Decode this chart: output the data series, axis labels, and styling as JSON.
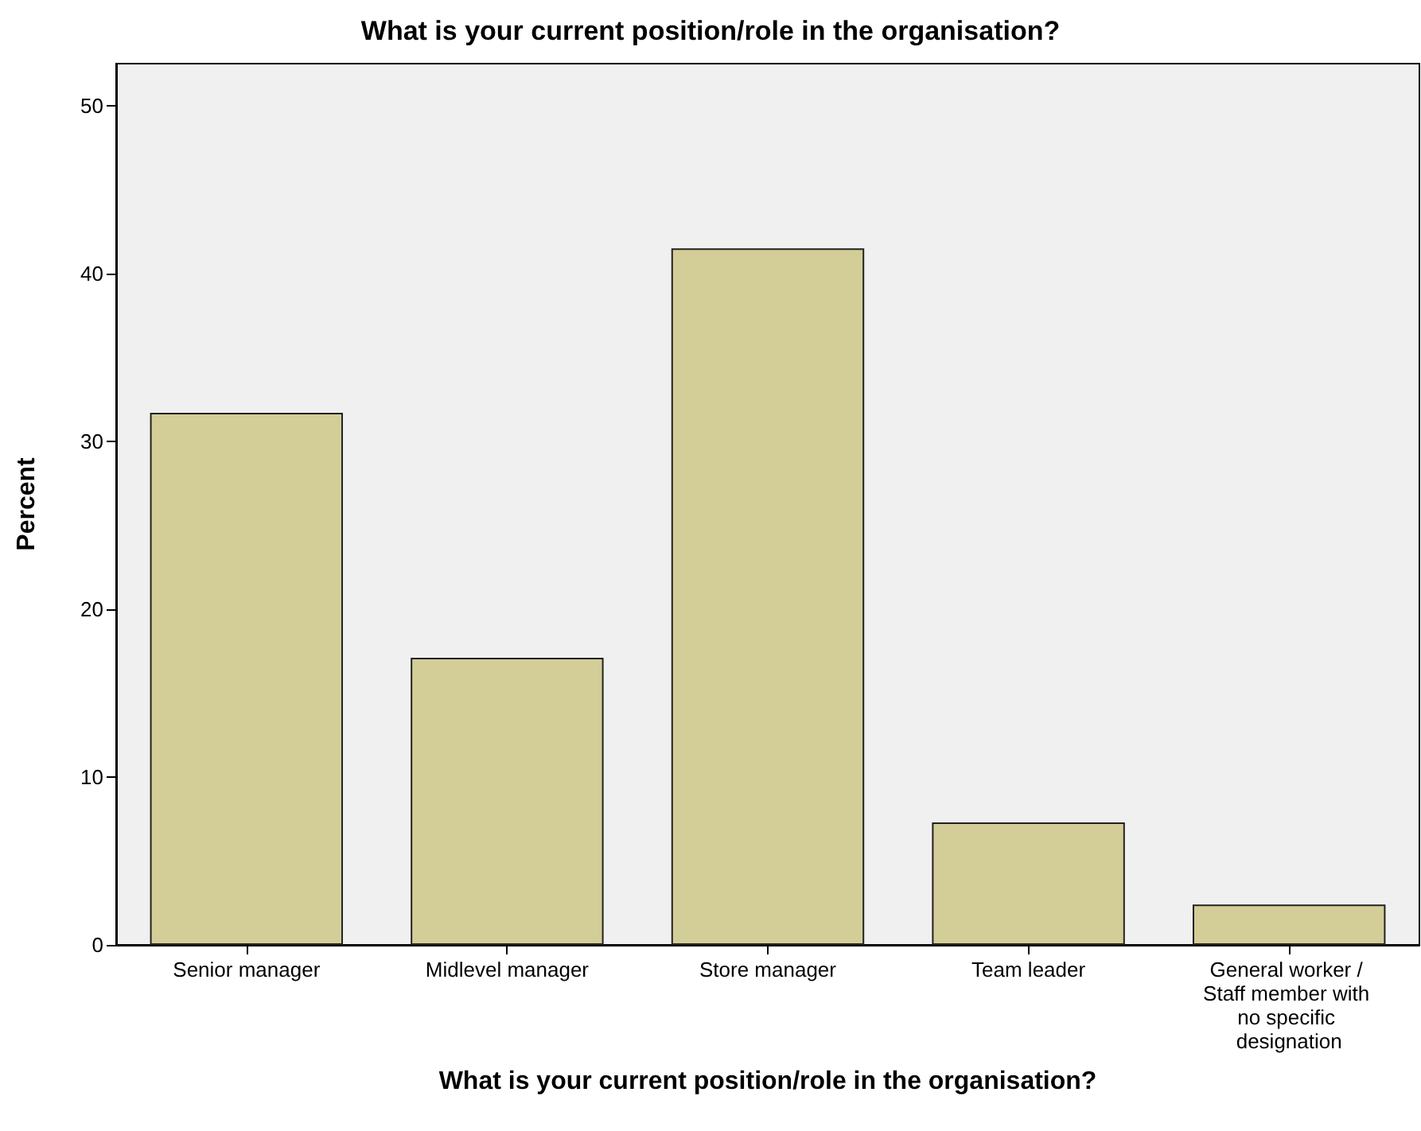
{
  "chart_data": {
    "type": "bar",
    "title": "What is your current position/role in the organisation?",
    "xlabel": "What is your current position/role in the organisation?",
    "ylabel": "Percent",
    "categories": [
      "Senior manager",
      "Midlevel manager",
      "Store manager",
      "Team leader",
      "General worker / Staff member with no specific designation"
    ],
    "values": [
      31.7,
      17.1,
      41.5,
      7.3,
      2.4
    ],
    "color": "#d3ce97",
    "ylim": [
      0,
      52.5
    ],
    "yticks": [
      0,
      10,
      20,
      30,
      40,
      50
    ],
    "grid": false
  }
}
